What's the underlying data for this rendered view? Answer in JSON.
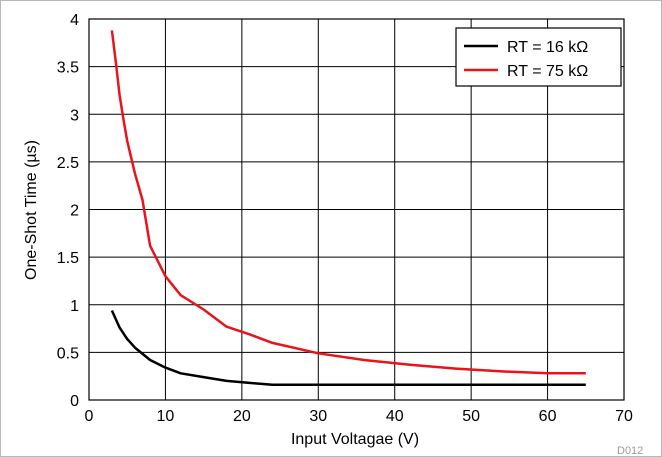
{
  "chart_data": {
    "type": "line",
    "xlabel": "Input Voltagae (V)",
    "ylabel": "One-Shot Time (µs)",
    "xlim": [
      0,
      70
    ],
    "ylim": [
      0,
      4
    ],
    "x_ticks": [
      0,
      10,
      20,
      30,
      40,
      50,
      60,
      70
    ],
    "y_ticks": [
      0,
      0.5,
      1,
      1.5,
      2,
      2.5,
      3,
      3.5,
      4
    ],
    "x_tick_labels": [
      "0",
      "10",
      "20",
      "30",
      "40",
      "50",
      "60",
      "70"
    ],
    "y_tick_labels": [
      "0",
      "0.5",
      "1",
      "1.5",
      "2",
      "2.5",
      "3",
      "3.5",
      "4"
    ],
    "grid": true,
    "legend_position": "top-right",
    "figure_id": "D012",
    "series": [
      {
        "name": "RT = 16 kΩ",
        "color": "#000000",
        "x": [
          3,
          4,
          5,
          6,
          8,
          10,
          12,
          15,
          18,
          21,
          24,
          30,
          36,
          42,
          48,
          54,
          60,
          65
        ],
        "y": [
          0.94,
          0.76,
          0.64,
          0.55,
          0.42,
          0.34,
          0.28,
          0.24,
          0.2,
          0.18,
          0.16,
          0.16,
          0.16,
          0.16,
          0.16,
          0.16,
          0.16,
          0.16
        ]
      },
      {
        "name": "RT = 75 kΩ",
        "color": "#e8141c",
        "x": [
          3,
          3.5,
          4,
          4.5,
          5,
          6,
          7,
          8,
          10,
          12,
          15,
          18,
          21,
          24,
          30,
          36,
          42,
          48,
          54,
          60,
          65
        ],
        "y": [
          3.88,
          3.55,
          3.2,
          2.95,
          2.72,
          2.38,
          2.1,
          1.62,
          1.3,
          1.1,
          0.95,
          0.77,
          0.69,
          0.6,
          0.49,
          0.42,
          0.37,
          0.33,
          0.3,
          0.28,
          0.28
        ]
      }
    ]
  }
}
